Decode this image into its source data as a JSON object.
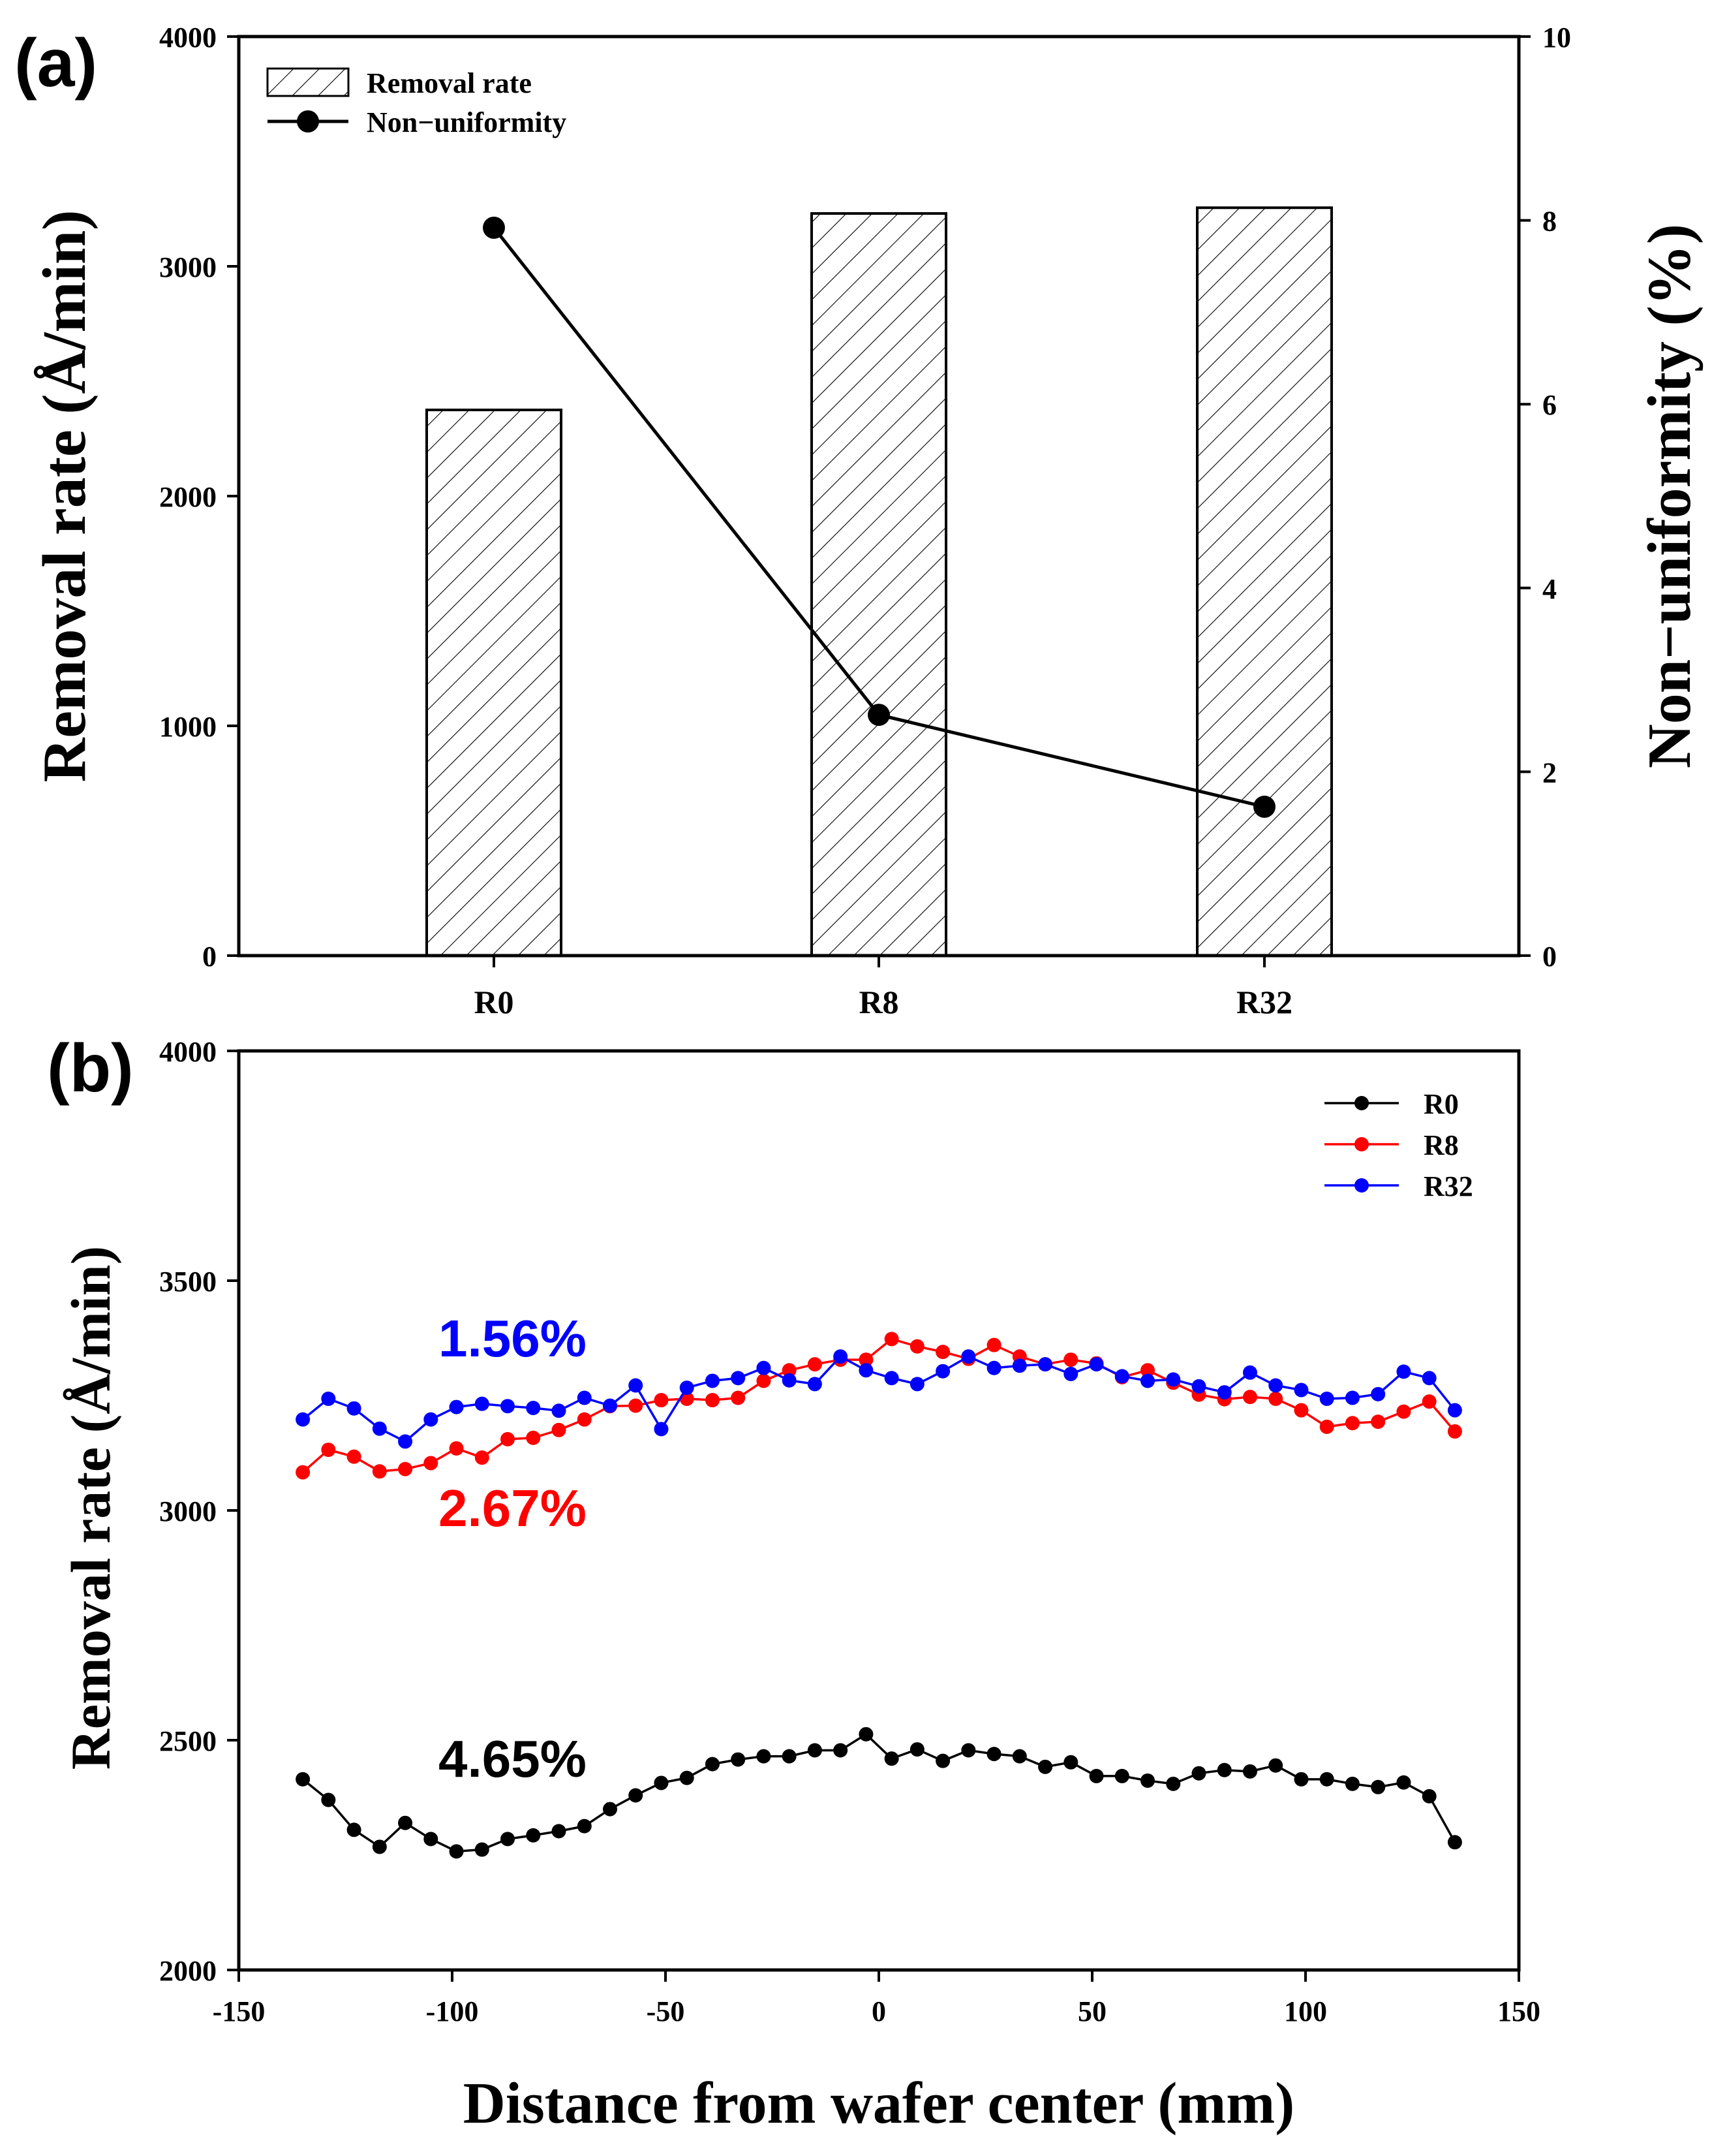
{
  "panel_a": {
    "label": "(a)"
  },
  "panel_b": {
    "label": "(b)"
  },
  "chart_data": [
    {
      "type": "bar",
      "categories": [
        "R0",
        "R8",
        "R32"
      ],
      "ylabel": "Removal rate (Å/min)",
      "y2label": "Non−uniformity (%)",
      "ylim": [
        0,
        4000
      ],
      "y2lim": [
        0,
        10
      ],
      "yticks": [
        0,
        1000,
        2000,
        3000,
        4000
      ],
      "y2ticks": [
        0,
        2,
        4,
        6,
        8,
        10
      ],
      "legend_position": "top-left",
      "series": [
        {
          "name": "Removal rate",
          "kind": "bar",
          "pattern": "hatched",
          "axis": "left",
          "values": [
            2375,
            3230,
            3255
          ]
        },
        {
          "name": "Non−uniformity",
          "kind": "line",
          "marker": "circle",
          "axis": "right",
          "values": [
            7.92,
            2.62,
            1.62
          ]
        }
      ]
    },
    {
      "type": "line",
      "xlabel": "Distance from wafer center (mm)",
      "ylabel": "Removal rate (Å/min)",
      "xlim": [
        -150,
        150
      ],
      "ylim": [
        2000,
        4000
      ],
      "xticks": [
        -150,
        -100,
        -50,
        0,
        50,
        100,
        150
      ],
      "yticks": [
        2000,
        2500,
        3000,
        3500,
        4000
      ],
      "legend_position": "top-right",
      "x": [
        -135,
        -129,
        -123,
        -117,
        -111,
        -105,
        -99,
        -93,
        -87,
        -81,
        -75,
        -69,
        -63,
        -57,
        -51,
        -45,
        -39,
        -33,
        -27,
        -21,
        -15,
        -9,
        -3,
        3,
        9,
        15,
        21,
        27,
        33,
        39,
        45,
        51,
        57,
        63,
        69,
        75,
        81,
        87,
        93,
        99,
        105,
        111,
        117,
        123,
        129,
        135
      ],
      "series": [
        {
          "name": "R0",
          "color": "#000000",
          "annotation": "4.65%",
          "values": [
            2415,
            2370,
            2305,
            2268,
            2320,
            2285,
            2258,
            2262,
            2285,
            2293,
            2302,
            2313,
            2350,
            2380,
            2407,
            2418,
            2448,
            2458,
            2465,
            2465,
            2478,
            2478,
            2513,
            2460,
            2480,
            2455,
            2478,
            2470,
            2465,
            2442,
            2452,
            2422,
            2422,
            2412,
            2405,
            2428,
            2435,
            2432,
            2445,
            2415,
            2415,
            2405,
            2398,
            2408,
            2378,
            2278
          ]
        },
        {
          "name": "R8",
          "color": "#ff0000",
          "annotation": "2.67%",
          "values": [
            3083,
            3132,
            3117,
            3085,
            3090,
            3103,
            3135,
            3115,
            3155,
            3158,
            3175,
            3198,
            3227,
            3228,
            3240,
            3243,
            3240,
            3245,
            3282,
            3305,
            3318,
            3328,
            3328,
            3373,
            3357,
            3345,
            3330,
            3360,
            3335,
            3318,
            3328,
            3320,
            3290,
            3305,
            3278,
            3252,
            3242,
            3247,
            3243,
            3218,
            3182,
            3190,
            3193,
            3215,
            3237,
            3172
          ]
        },
        {
          "name": "R32",
          "color": "#0000ff",
          "annotation": "1.56%",
          "values": [
            3198,
            3243,
            3222,
            3178,
            3150,
            3198,
            3225,
            3232,
            3227,
            3223,
            3217,
            3245,
            3228,
            3272,
            3177,
            3267,
            3282,
            3288,
            3310,
            3283,
            3275,
            3335,
            3305,
            3288,
            3275,
            3303,
            3335,
            3310,
            3315,
            3318,
            3297,
            3318,
            3292,
            3282,
            3285,
            3270,
            3257,
            3300,
            3272,
            3262,
            3243,
            3245,
            3253,
            3302,
            3288,
            3218
          ]
        }
      ]
    }
  ]
}
